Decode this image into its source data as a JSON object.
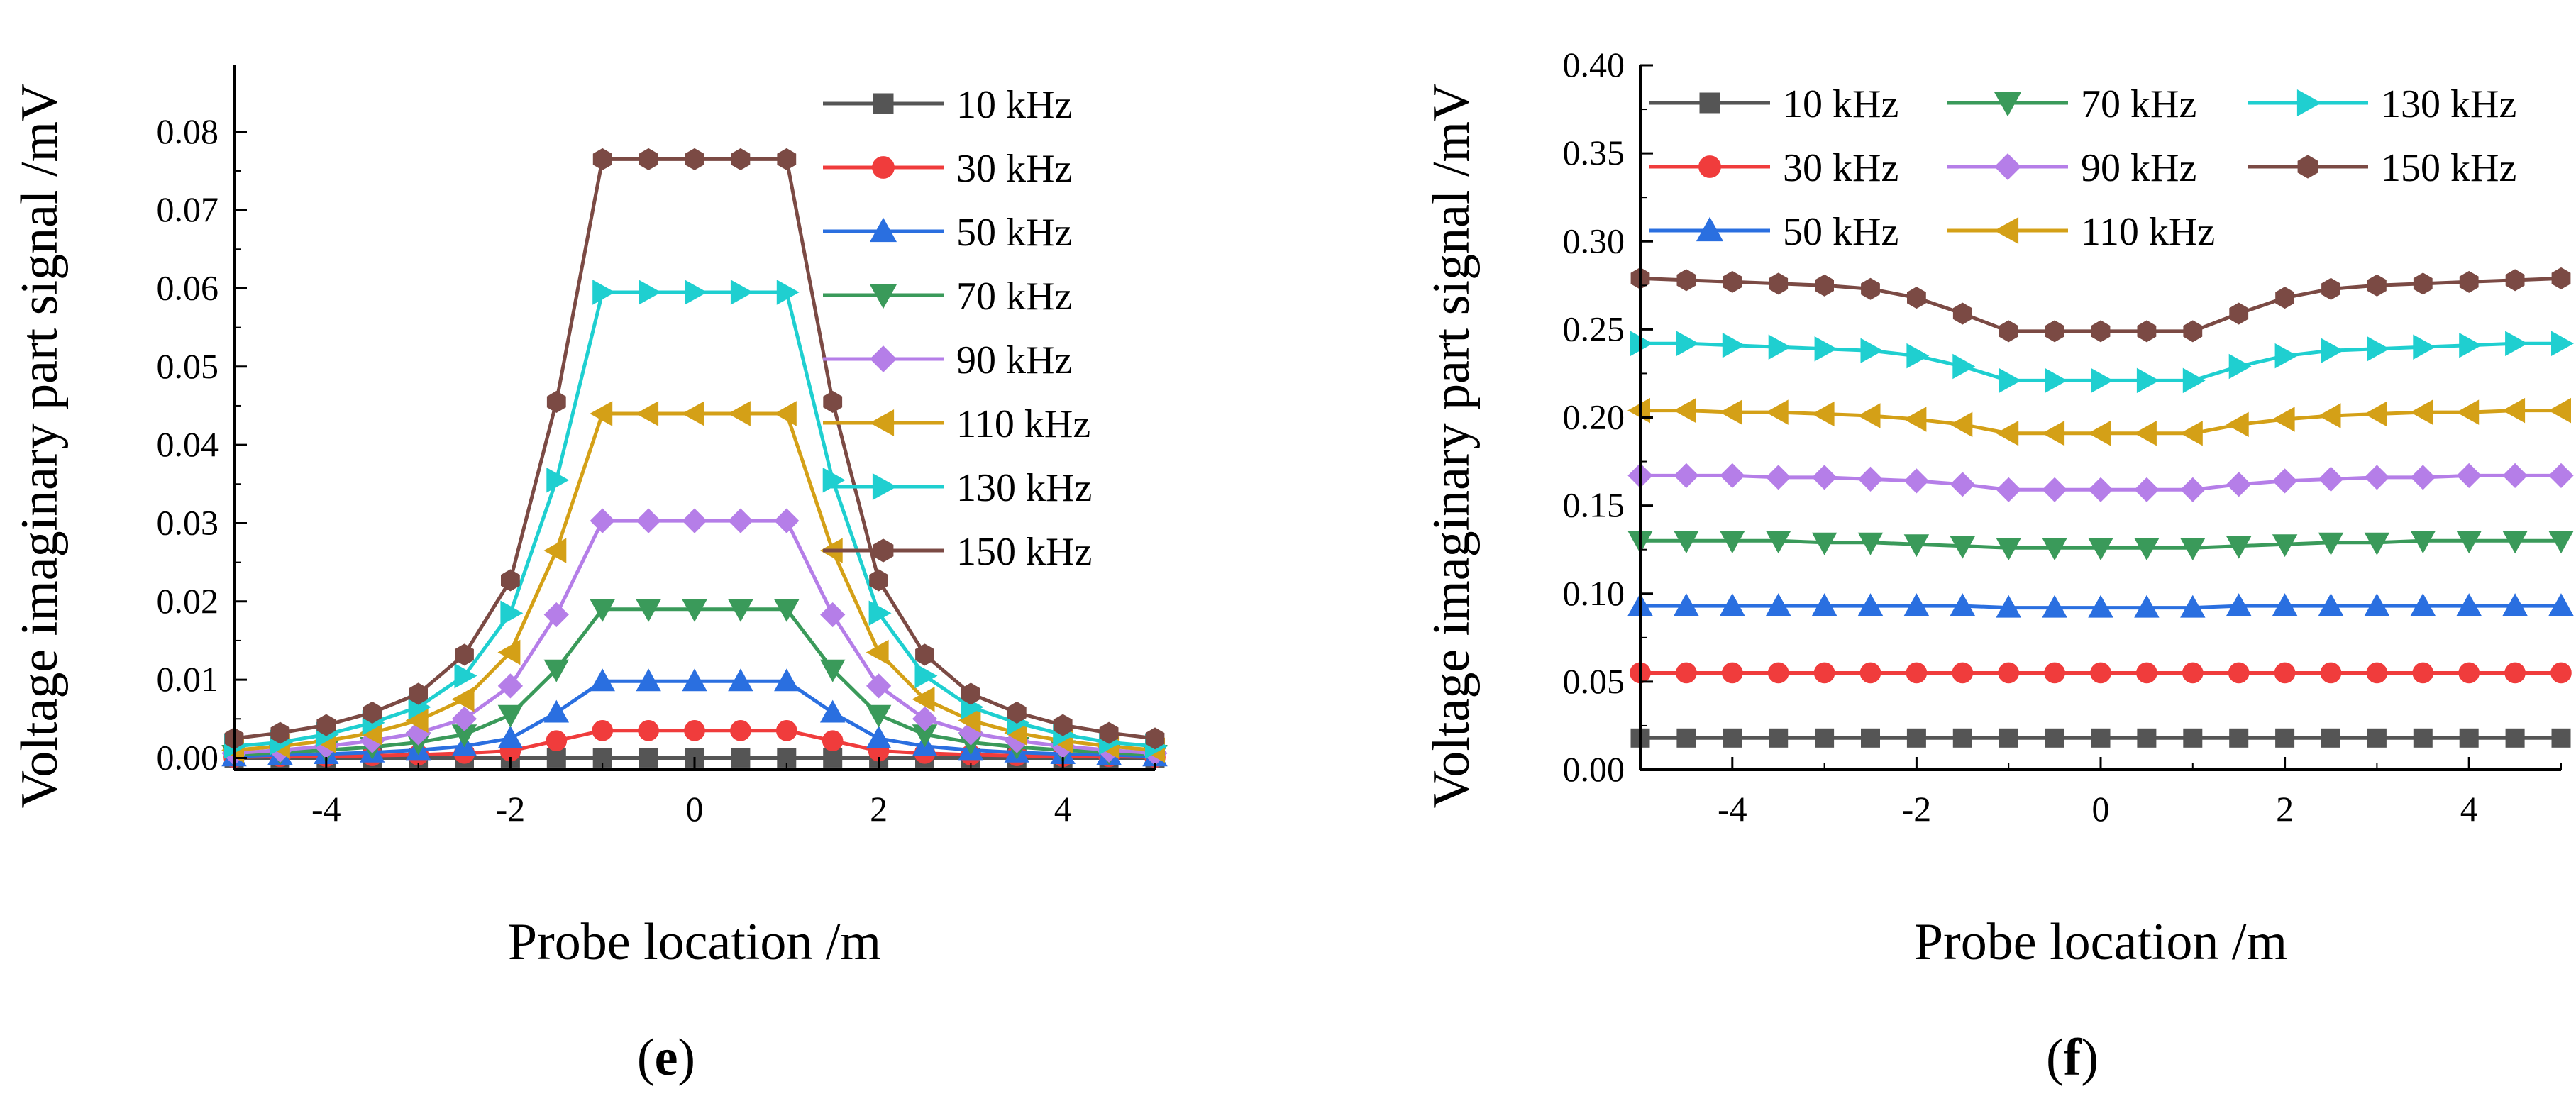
{
  "figure": {
    "panel_labels": [
      {
        "open": "(",
        "letter": "e",
        "close": ")"
      },
      {
        "open": "(",
        "letter": "f",
        "close": ")"
      }
    ]
  },
  "chart_data": [
    {
      "id": "e",
      "type": "line",
      "xlabel": "Probe location  /m",
      "ylabel": "Voltage imaginary part signal /mV",
      "xlim": [
        -5,
        5
      ],
      "ylim": [
        -0.0015,
        0.0885
      ],
      "xticks": [
        -4,
        -2,
        0,
        2,
        4
      ],
      "xtick_labels": [
        "-4",
        "-2",
        "0",
        "2",
        "4"
      ],
      "yticks": [
        0,
        0.01,
        0.02,
        0.03,
        0.04,
        0.05,
        0.06,
        0.07,
        0.08
      ],
      "ytick_labels": [
        "0.00",
        "0.01",
        "0.02",
        "0.03",
        "0.04",
        "0.05",
        "0.06",
        "0.07",
        "0.08"
      ],
      "legend": {
        "placement": "top-right",
        "columns": 1
      },
      "x": [
        -5,
        -4.5,
        -4,
        -3.5,
        -3,
        -2.5,
        -2,
        -1.5,
        -1,
        -0.5,
        0,
        0.5,
        1,
        1.5,
        2,
        2.5,
        3,
        3.5,
        4,
        4.5,
        5
      ],
      "series": [
        {
          "name": "10 kHz",
          "color": "#555555",
          "marker": "square",
          "values": [
            0,
            0,
            0,
            0,
            0,
            0,
            0,
            0,
            0,
            0,
            0,
            0,
            0,
            0,
            0,
            0,
            0,
            0,
            0,
            0,
            0
          ]
        },
        {
          "name": "30 kHz",
          "color": "#f03c3c",
          "marker": "circle",
          "values": [
            0.0001,
            0.0002,
            0.0002,
            0.0003,
            0.0004,
            0.0006,
            0.0009,
            0.0022,
            0.0035,
            0.0035,
            0.0035,
            0.0035,
            0.0035,
            0.0022,
            0.0009,
            0.0006,
            0.0004,
            0.0003,
            0.0002,
            0.0002,
            0.0001
          ]
        },
        {
          "name": "50 kHz",
          "color": "#2a6fe0",
          "marker": "triangle-up",
          "values": [
            0.0002,
            0.0004,
            0.0005,
            0.0007,
            0.001,
            0.0015,
            0.0025,
            0.0058,
            0.0098,
            0.0098,
            0.0098,
            0.0098,
            0.0098,
            0.0058,
            0.0025,
            0.0015,
            0.001,
            0.0007,
            0.0005,
            0.0004,
            0.0002
          ]
        },
        {
          "name": "70 kHz",
          "color": "#3a9a5a",
          "marker": "triangle-down",
          "values": [
            0.0004,
            0.0007,
            0.001,
            0.0014,
            0.002,
            0.003,
            0.0055,
            0.0113,
            0.019,
            0.019,
            0.019,
            0.019,
            0.019,
            0.0113,
            0.0055,
            0.003,
            0.002,
            0.0014,
            0.001,
            0.0007,
            0.0004
          ]
        },
        {
          "name": "90 kHz",
          "color": "#b57ee8",
          "marker": "diamond",
          "values": [
            0.0006,
            0.001,
            0.0015,
            0.0022,
            0.0032,
            0.005,
            0.0092,
            0.0183,
            0.0303,
            0.0303,
            0.0303,
            0.0303,
            0.0303,
            0.0183,
            0.0092,
            0.005,
            0.0032,
            0.0022,
            0.0015,
            0.001,
            0.0006
          ]
        },
        {
          "name": "110 kHz",
          "color": "#d4a017",
          "marker": "triangle-left",
          "values": [
            0.001,
            0.0015,
            0.0022,
            0.0032,
            0.0048,
            0.0075,
            0.0135,
            0.0265,
            0.044,
            0.044,
            0.044,
            0.044,
            0.044,
            0.0265,
            0.0135,
            0.0075,
            0.0048,
            0.0032,
            0.0022,
            0.0015,
            0.001
          ]
        },
        {
          "name": "130 kHz",
          "color": "#1fcfd0",
          "marker": "triangle-right",
          "values": [
            0.0015,
            0.002,
            0.003,
            0.0045,
            0.0065,
            0.0105,
            0.0185,
            0.0355,
            0.0595,
            0.0595,
            0.0595,
            0.0595,
            0.0595,
            0.0355,
            0.0185,
            0.0105,
            0.0065,
            0.0045,
            0.003,
            0.002,
            0.0015
          ]
        },
        {
          "name": "150 kHz",
          "color": "#7b4a44",
          "marker": "hexagon",
          "values": [
            0.0025,
            0.0032,
            0.0042,
            0.0058,
            0.0082,
            0.0132,
            0.0227,
            0.0455,
            0.0765,
            0.0765,
            0.0765,
            0.0765,
            0.0765,
            0.0455,
            0.0227,
            0.0132,
            0.0082,
            0.0058,
            0.0042,
            0.0032,
            0.0025
          ]
        }
      ]
    },
    {
      "id": "f",
      "type": "line",
      "xlabel": "Probe location  /m",
      "ylabel": "Voltage imaginary part signal /mV",
      "xlim": [
        -5,
        5
      ],
      "ylim": [
        0,
        0.4
      ],
      "xticks": [
        -4,
        -2,
        0,
        2,
        4
      ],
      "xtick_labels": [
        "-4",
        "-2",
        "0",
        "2",
        "4"
      ],
      "yticks": [
        0,
        0.05,
        0.1,
        0.15,
        0.2,
        0.25,
        0.3,
        0.35,
        0.4
      ],
      "ytick_labels": [
        "0.00",
        "0.05",
        "0.10",
        "0.15",
        "0.20",
        "0.25",
        "0.30",
        "0.35",
        "0.40"
      ],
      "legend": {
        "placement": "top",
        "columns": 3
      },
      "x": [
        -5,
        -4.5,
        -4,
        -3.5,
        -3,
        -2.5,
        -2,
        -1.5,
        -1,
        -0.5,
        0,
        0.5,
        1,
        1.5,
        2,
        2.5,
        3,
        3.5,
        4,
        4.5,
        5
      ],
      "series": [
        {
          "name": "10 kHz",
          "color": "#555555",
          "marker": "square",
          "values": [
            0.018,
            0.018,
            0.018,
            0.018,
            0.018,
            0.018,
            0.018,
            0.018,
            0.018,
            0.018,
            0.018,
            0.018,
            0.018,
            0.018,
            0.018,
            0.018,
            0.018,
            0.018,
            0.018,
            0.018,
            0.018
          ]
        },
        {
          "name": "30 kHz",
          "color": "#f03c3c",
          "marker": "circle",
          "values": [
            0.055,
            0.055,
            0.055,
            0.055,
            0.055,
            0.055,
            0.055,
            0.055,
            0.055,
            0.055,
            0.055,
            0.055,
            0.055,
            0.055,
            0.055,
            0.055,
            0.055,
            0.055,
            0.055,
            0.055,
            0.055
          ]
        },
        {
          "name": "50 kHz",
          "color": "#2a6fe0",
          "marker": "triangle-up",
          "values": [
            0.093,
            0.093,
            0.093,
            0.093,
            0.093,
            0.093,
            0.093,
            0.093,
            0.092,
            0.092,
            0.092,
            0.092,
            0.092,
            0.093,
            0.093,
            0.093,
            0.093,
            0.093,
            0.093,
            0.093,
            0.093
          ]
        },
        {
          "name": "70 kHz",
          "color": "#3a9a5a",
          "marker": "triangle-down",
          "values": [
            0.13,
            0.13,
            0.13,
            0.13,
            0.129,
            0.129,
            0.128,
            0.127,
            0.126,
            0.126,
            0.126,
            0.126,
            0.126,
            0.127,
            0.128,
            0.129,
            0.129,
            0.13,
            0.13,
            0.13,
            0.13
          ]
        },
        {
          "name": "90 kHz",
          "color": "#b57ee8",
          "marker": "diamond",
          "values": [
            0.167,
            0.167,
            0.167,
            0.166,
            0.166,
            0.165,
            0.164,
            0.162,
            0.159,
            0.159,
            0.159,
            0.159,
            0.159,
            0.162,
            0.164,
            0.165,
            0.166,
            0.166,
            0.167,
            0.167,
            0.167
          ]
        },
        {
          "name": "110 kHz",
          "color": "#d4a017",
          "marker": "triangle-left",
          "values": [
            0.204,
            0.204,
            0.203,
            0.203,
            0.202,
            0.201,
            0.199,
            0.196,
            0.191,
            0.191,
            0.191,
            0.191,
            0.191,
            0.196,
            0.199,
            0.201,
            0.202,
            0.203,
            0.203,
            0.204,
            0.204
          ]
        },
        {
          "name": "130 kHz",
          "color": "#1fcfd0",
          "marker": "triangle-right",
          "values": [
            0.242,
            0.242,
            0.241,
            0.24,
            0.239,
            0.238,
            0.235,
            0.229,
            0.221,
            0.221,
            0.221,
            0.221,
            0.221,
            0.229,
            0.235,
            0.238,
            0.239,
            0.24,
            0.241,
            0.242,
            0.242
          ]
        },
        {
          "name": "150 kHz",
          "color": "#7b4a44",
          "marker": "hexagon",
          "values": [
            0.279,
            0.278,
            0.277,
            0.276,
            0.275,
            0.273,
            0.268,
            0.259,
            0.249,
            0.249,
            0.249,
            0.249,
            0.249,
            0.259,
            0.268,
            0.273,
            0.275,
            0.276,
            0.277,
            0.278,
            0.279
          ]
        }
      ]
    }
  ]
}
